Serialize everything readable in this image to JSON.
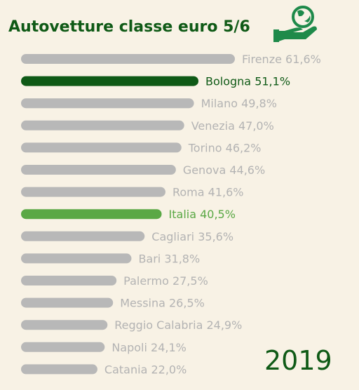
{
  "header": {
    "title": "Autovetture classe euro 5/6",
    "logo_icon": "globe-on-hand-icon"
  },
  "footer": {
    "year": "2019"
  },
  "colors": {
    "background": "#f8f2e5",
    "bar_default": "#b8b8b8",
    "label_default": "#b3b3b3",
    "highlight_dark": "#0f5a16",
    "highlight_light": "#5aa845"
  },
  "chart_data": {
    "type": "bar",
    "orientation": "horizontal",
    "categories": [
      "Firenze",
      "Bologna",
      "Milano",
      "Venezia",
      "Torino",
      "Genova",
      "Roma",
      "Italia",
      "Cagliari",
      "Bari",
      "Palermo",
      "Messina",
      "Reggio Calabria",
      "Napoli",
      "Catania"
    ],
    "values": [
      61.6,
      51.1,
      49.8,
      47.0,
      46.2,
      44.6,
      41.6,
      40.5,
      35.6,
      31.8,
      27.5,
      26.5,
      24.9,
      24.1,
      22.0
    ],
    "labels": [
      "Firenze 61,6%",
      "Bologna 51,1%",
      "Milano 49,8%",
      "Venezia 47,0%",
      "Torino 46,2%",
      "Genova 44,6%",
      "Roma 41,6%",
      "Italia 40,5%",
      "Cagliari 35,6%",
      "Bari 31,8%",
      "Palermo 27,5%",
      "Messina 26,5%",
      "Reggio Calabria 24,9%",
      "Napoli 24,1%",
      "Catania 22,0%"
    ],
    "highlights": {
      "Bologna": "highlight_dark",
      "Italia": "highlight_light"
    },
    "title": "",
    "xlabel": "",
    "ylabel": "",
    "grid": false,
    "legend": "none"
  }
}
